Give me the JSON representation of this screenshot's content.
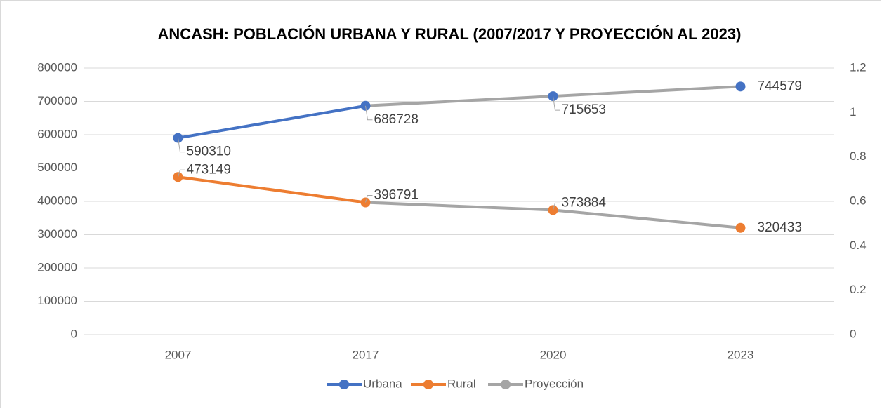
{
  "chart_data": {
    "type": "line",
    "title": "ANCASH: POBLACIÓN URBANA Y RURAL (2007/2017 Y PROYECCIÓN AL 2023)",
    "categories": [
      "2007",
      "2017",
      "2020",
      "2023"
    ],
    "series": [
      {
        "name": "Urbana",
        "color": "#4472c4",
        "values": [
          590310,
          686728,
          715653,
          744579
        ]
      },
      {
        "name": "Rural",
        "color": "#ed7d31",
        "values": [
          473149,
          396791,
          373884,
          320433
        ]
      },
      {
        "name": "Proyección",
        "color": "#a5a5a5"
      }
    ],
    "projection_start": "2017",
    "ylim": [
      0,
      800000
    ],
    "yticks": [
      0,
      100000,
      200000,
      300000,
      400000,
      500000,
      600000,
      700000,
      800000
    ],
    "y2lim": [
      0,
      1.2
    ],
    "y2ticks": [
      0,
      0.2,
      0.4,
      0.6,
      0.8,
      1,
      1.2
    ],
    "grid": true,
    "legend": "bottom"
  }
}
